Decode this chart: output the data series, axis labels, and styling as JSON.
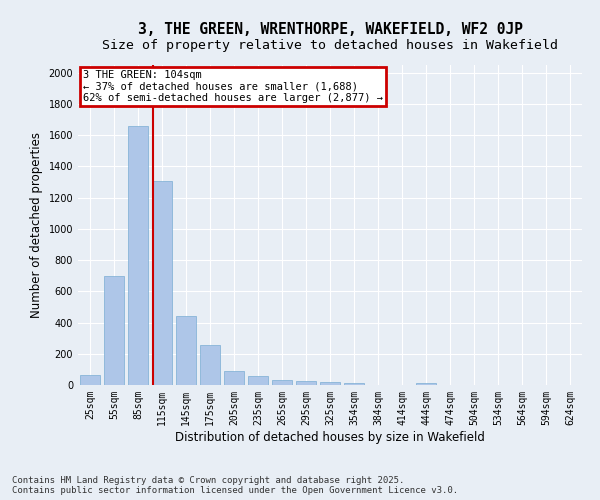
{
  "title_line1": "3, THE GREEN, WRENTHORPE, WAKEFIELD, WF2 0JP",
  "title_line2": "Size of property relative to detached houses in Wakefield",
  "xlabel": "Distribution of detached houses by size in Wakefield",
  "ylabel": "Number of detached properties",
  "categories": [
    "25sqm",
    "55sqm",
    "85sqm",
    "115sqm",
    "145sqm",
    "175sqm",
    "205sqm",
    "235sqm",
    "265sqm",
    "295sqm",
    "325sqm",
    "354sqm",
    "384sqm",
    "414sqm",
    "444sqm",
    "474sqm",
    "504sqm",
    "534sqm",
    "564sqm",
    "594sqm",
    "624sqm"
  ],
  "values": [
    62,
    700,
    1660,
    1310,
    440,
    255,
    90,
    55,
    30,
    25,
    20,
    15,
    0,
    0,
    15,
    0,
    0,
    0,
    0,
    0,
    0
  ],
  "bar_color": "#aec6e8",
  "bar_edgecolor": "#7aadd4",
  "bg_color": "#e8eef5",
  "grid_color": "#ffffff",
  "vline_color": "#cc0000",
  "annotation_text": "3 THE GREEN: 104sqm\n← 37% of detached houses are smaller (1,688)\n62% of semi-detached houses are larger (2,877) →",
  "annotation_box_color": "#cc0000",
  "annotation_bg": "#ffffff",
  "ylim": [
    0,
    2050
  ],
  "yticks": [
    0,
    200,
    400,
    600,
    800,
    1000,
    1200,
    1400,
    1600,
    1800,
    2000
  ],
  "footer_line1": "Contains HM Land Registry data © Crown copyright and database right 2025.",
  "footer_line2": "Contains public sector information licensed under the Open Government Licence v3.0.",
  "title_fontsize": 10.5,
  "subtitle_fontsize": 9.5,
  "tick_fontsize": 7,
  "label_fontsize": 8.5,
  "footer_fontsize": 6.5,
  "annotation_fontsize": 7.5
}
